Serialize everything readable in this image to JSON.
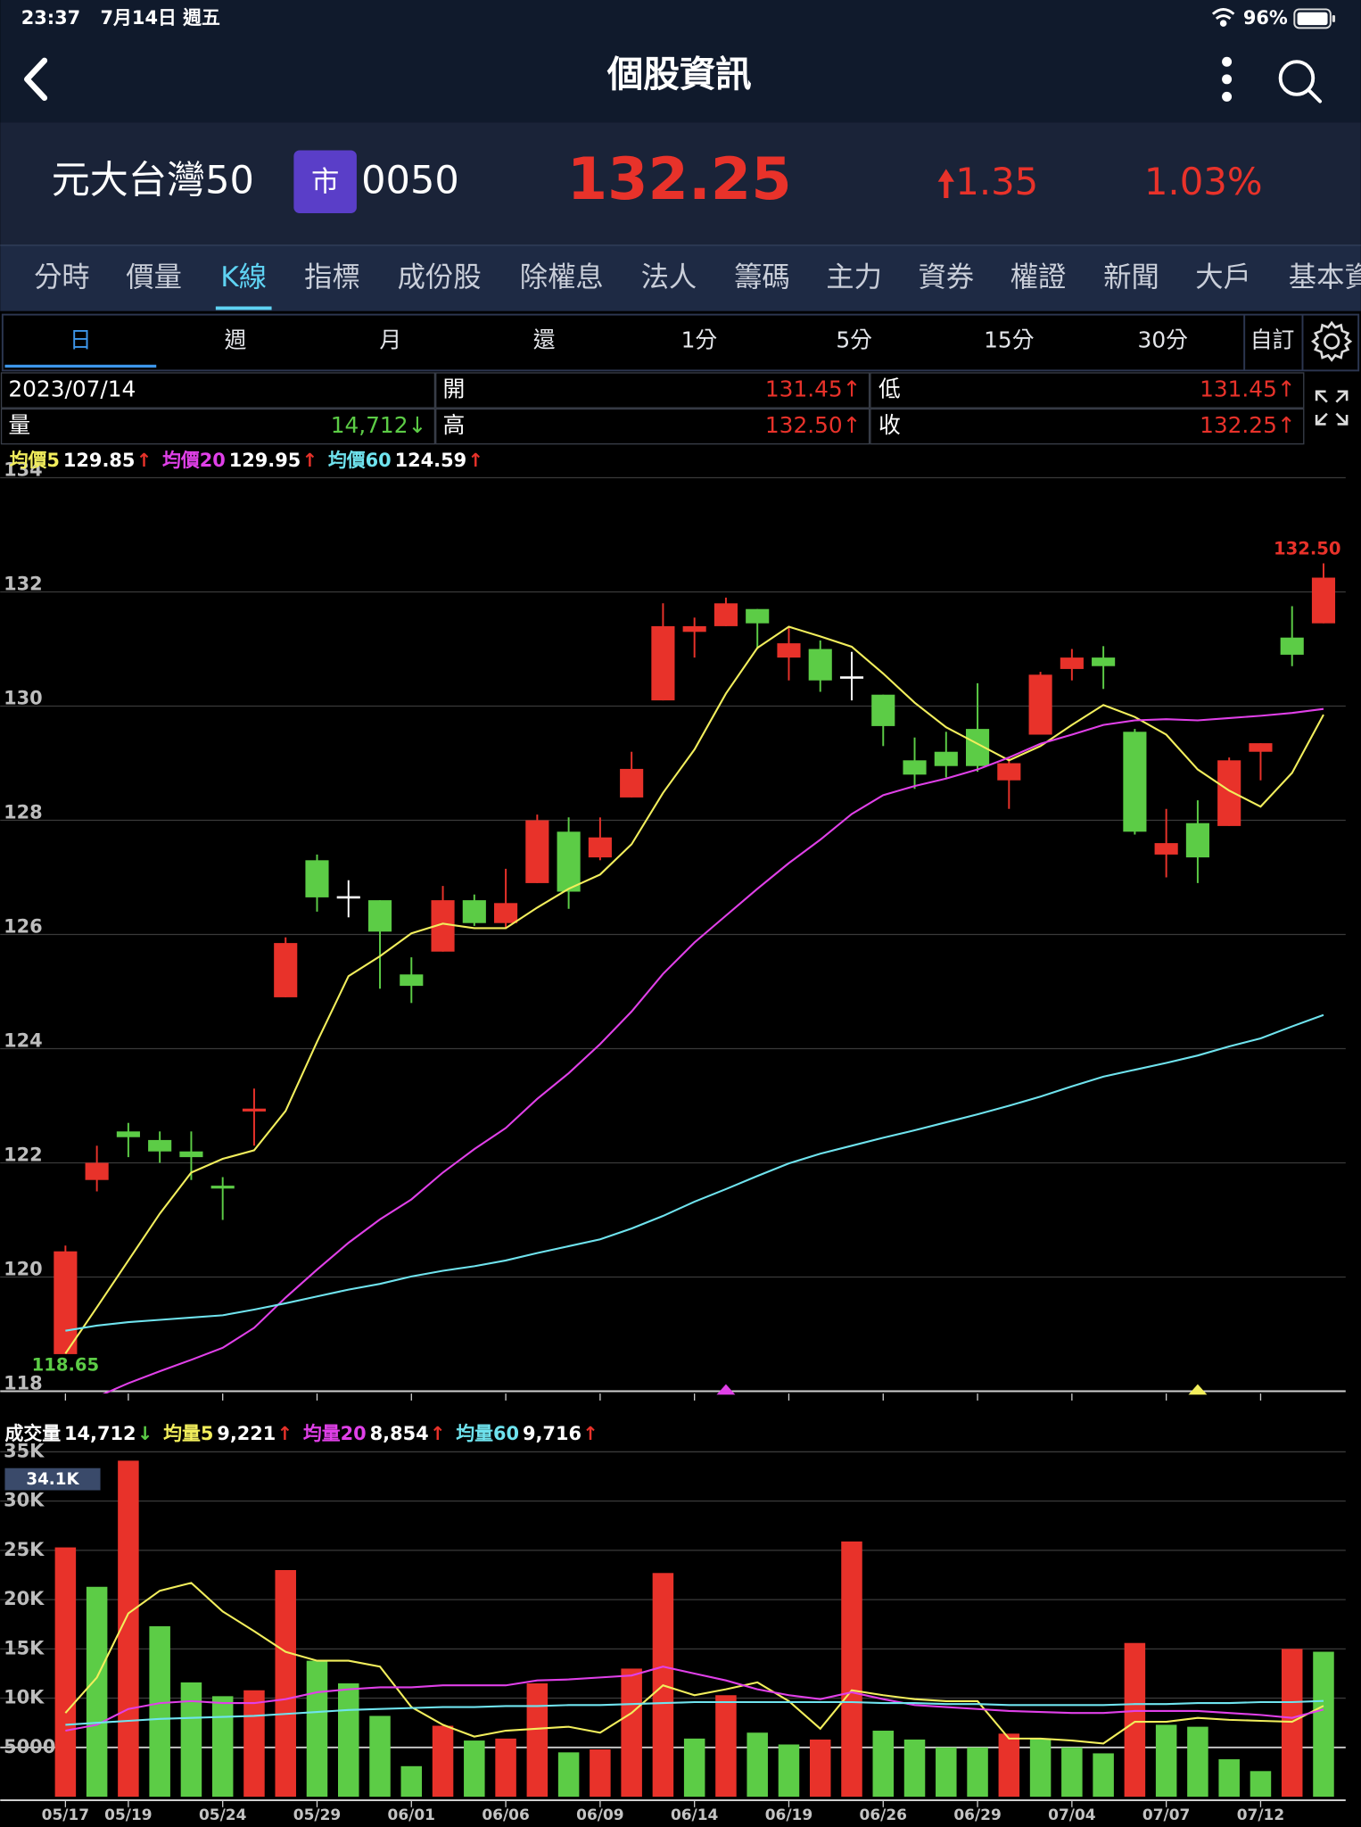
{
  "status_bar": {
    "time": "23:37",
    "date": "7月14日 週五",
    "battery": "96%"
  },
  "header": {
    "title": "個股資訊"
  },
  "quote": {
    "name": "元大台灣50",
    "market": "市",
    "code": "0050",
    "price": "132.25",
    "change": "1.35",
    "change_pct": "1.03%"
  },
  "tabs": [
    "分時",
    "價量",
    "K線",
    "指標",
    "成份股",
    "除權息",
    "法人",
    "籌碼",
    "主力",
    "資券",
    "權證",
    "新聞",
    "大戶",
    "基本資"
  ],
  "active_tab": 2,
  "periods": [
    "日",
    "週",
    "月",
    "還",
    "1分",
    "5分",
    "15分",
    "30分",
    "自訂"
  ],
  "active_period": 0,
  "info": {
    "date": "2023/07/14",
    "open": {
      "label": "開",
      "value": "131.45↑"
    },
    "low": {
      "label": "低",
      "value": "131.45↑"
    },
    "volume": {
      "label": "量",
      "value": "14,712↓"
    },
    "high": {
      "label": "高",
      "value": "132.50↑"
    },
    "close": {
      "label": "收",
      "value": "132.25↑"
    }
  },
  "chart_data": [
    {
      "type": "candlestick",
      "open": [
        118.65,
        121.7,
        122.55,
        122.4,
        122.2,
        121.6,
        122.9,
        124.9,
        127.3,
        126.65,
        126.6,
        125.3,
        125.7,
        126.6,
        126.2,
        126.9,
        127.8,
        127.35,
        128.4,
        130.1,
        131.3,
        131.4,
        131.7,
        130.85,
        131.0,
        130.5,
        130.2,
        129.05,
        129.2,
        129.6,
        128.7,
        129.5,
        130.65,
        130.85,
        129.55,
        127.4,
        127.95,
        127.9,
        129.2,
        131.2,
        131.45
      ],
      "high": [
        120.55,
        122.3,
        122.7,
        122.55,
        122.55,
        121.75,
        123.3,
        125.95,
        127.4,
        126.95,
        126.6,
        125.6,
        126.85,
        126.7,
        127.15,
        128.1,
        128.05,
        128.05,
        129.2,
        131.8,
        131.55,
        131.9,
        131.7,
        131.4,
        131.15,
        130.95,
        130.2,
        129.45,
        129.55,
        130.4,
        129.1,
        130.6,
        131.0,
        131.05,
        129.6,
        128.2,
        128.35,
        129.1,
        129.35,
        131.75,
        132.5
      ],
      "low": [
        118.65,
        121.5,
        122.1,
        122.0,
        121.7,
        121.0,
        122.3,
        124.9,
        126.4,
        126.3,
        125.05,
        124.8,
        125.7,
        126.15,
        126.1,
        126.9,
        126.45,
        127.3,
        128.4,
        130.1,
        130.85,
        131.4,
        131.0,
        130.45,
        130.25,
        130.1,
        129.3,
        128.55,
        128.75,
        128.85,
        128.2,
        129.5,
        130.45,
        130.3,
        127.75,
        127.0,
        126.9,
        127.9,
        128.7,
        130.7,
        131.45
      ],
      "close": [
        120.45,
        122.0,
        122.45,
        122.2,
        122.1,
        121.55,
        122.95,
        125.85,
        126.65,
        126.65,
        126.05,
        125.1,
        126.6,
        126.2,
        126.55,
        128.0,
        126.75,
        127.7,
        128.9,
        131.4,
        131.4,
        131.8,
        131.45,
        131.1,
        130.45,
        130.5,
        129.65,
        128.8,
        128.95,
        128.95,
        129.0,
        130.55,
        130.85,
        130.7,
        127.8,
        127.6,
        127.35,
        129.05,
        129.35,
        130.9,
        132.25
      ],
      "up_color": "#e8322a",
      "down_color": "#5ccc46",
      "flat_color": "#ffffff",
      "high_label": "132.50",
      "low_label": "118.65",
      "lines": [
        {
          "name": "均價5",
          "color": "#f2ee5c",
          "current": "129.85",
          "arrow": "↑",
          "arrow_color": "#e8322a",
          "values": [
            118.66,
            119.47,
            120.29,
            121.11,
            121.83,
            122.07,
            122.22,
            122.91,
            124.12,
            125.27,
            125.62,
            126.02,
            126.19,
            126.11,
            126.11,
            126.47,
            126.8,
            127.05,
            127.58,
            128.48,
            129.24,
            130.22,
            131.02,
            131.39,
            131.22,
            131.04,
            130.57,
            130.06,
            129.63,
            129.34,
            129.05,
            129.3,
            129.67,
            130.02,
            129.81,
            129.5,
            128.89,
            128.52,
            128.24,
            128.83,
            129.85
          ]
        },
        {
          "name": "均價20",
          "color": "#e040e8",
          "current": "129.95",
          "arrow": "↑",
          "arrow_color": "#e8322a",
          "values": [
            null,
            117.9,
            118.14,
            118.35,
            118.55,
            118.76,
            119.11,
            119.64,
            120.13,
            120.6,
            121.01,
            121.36,
            121.83,
            122.24,
            122.61,
            123.12,
            123.57,
            124.08,
            124.65,
            125.31,
            125.86,
            126.33,
            126.8,
            127.25,
            127.66,
            128.11,
            128.44,
            128.6,
            128.73,
            128.89,
            129.1,
            129.34,
            129.5,
            129.67,
            129.75,
            129.77,
            129.75,
            129.79,
            129.83,
            129.88,
            129.95
          ]
        },
        {
          "name": "均價60",
          "color": "#6fe3ee",
          "current": "124.59",
          "arrow": "↑",
          "arrow_color": "#e8322a",
          "values": [
            119.06,
            119.15,
            119.21,
            119.25,
            119.29,
            119.33,
            119.43,
            119.54,
            119.66,
            119.78,
            119.88,
            120.01,
            120.11,
            120.19,
            120.29,
            120.42,
            120.54,
            120.66,
            120.85,
            121.07,
            121.32,
            121.54,
            121.77,
            121.99,
            122.16,
            122.3,
            122.44,
            122.57,
            122.71,
            122.85,
            123.0,
            123.16,
            123.34,
            123.51,
            123.63,
            123.75,
            123.88,
            124.04,
            124.18,
            124.39,
            124.59
          ]
        }
      ],
      "ylim": [
        118,
        134
      ],
      "yticks": [
        118,
        120,
        122,
        124,
        126,
        128,
        130,
        132,
        134
      ],
      "grid": true
    },
    {
      "type": "bar",
      "name": "成交量",
      "current": "14,712",
      "arrow": "↓",
      "arrow_color": "#5ccc46",
      "categories": [
        "05/17",
        null,
        "05/19",
        null,
        null,
        "05/24",
        null,
        null,
        "05/29",
        null,
        null,
        "06/01",
        null,
        null,
        "06/06",
        null,
        null,
        "06/09",
        null,
        null,
        "06/14",
        null,
        null,
        "06/19",
        null,
        null,
        "06/26",
        null,
        null,
        "06/29",
        null,
        null,
        "07/04",
        null,
        null,
        "07/07",
        null,
        null,
        "07/12",
        null,
        null
      ],
      "values": [
        25300,
        21300,
        34100,
        17300,
        11600,
        10200,
        10800,
        23000,
        13800,
        11500,
        8200,
        3100,
        7200,
        5700,
        5900,
        11500,
        4500,
        4800,
        13000,
        22700,
        5900,
        10300,
        6500,
        5300,
        5800,
        25900,
        6700,
        5800,
        5000,
        5000,
        6400,
        5900,
        5000,
        4400,
        15600,
        7300,
        7100,
        3800,
        2600,
        15000,
        14712
      ],
      "colors": [
        "#e8322a",
        "#5ccc46",
        "#e8322a",
        "#5ccc46",
        "#5ccc46",
        "#5ccc46",
        "#e8322a",
        "#e8322a",
        "#5ccc46",
        "#5ccc46",
        "#5ccc46",
        "#5ccc46",
        "#e8322a",
        "#5ccc46",
        "#e8322a",
        "#e8322a",
        "#5ccc46",
        "#e8322a",
        "#e8322a",
        "#e8322a",
        "#5ccc46",
        "#e8322a",
        "#5ccc46",
        "#5ccc46",
        "#e8322a",
        "#e8322a",
        "#5ccc46",
        "#5ccc46",
        "#5ccc46",
        "#5ccc46",
        "#e8322a",
        "#5ccc46",
        "#5ccc46",
        "#5ccc46",
        "#e8322a",
        "#5ccc46",
        "#5ccc46",
        "#5ccc46",
        "#5ccc46",
        "#e8322a",
        "#5ccc46"
      ],
      "max_label": "34.1K",
      "lines": [
        {
          "name": "均量5",
          "color": "#f2ee5c",
          "current": "9,221",
          "arrow": "↑",
          "arrow_color": "#e8322a",
          "values": [
            8500,
            12100,
            18600,
            20900,
            21700,
            18800,
            16800,
            14700,
            13800,
            13800,
            13200,
            9100,
            7300,
            6100,
            6700,
            6900,
            7100,
            6500,
            8500,
            11300,
            10300,
            10900,
            11600,
            9700,
            6900,
            10800,
            10300,
            9900,
            9700,
            9700,
            5900,
            5900,
            5700,
            5400,
            7600,
            7600,
            8000,
            7800,
            7700,
            7600,
            9221
          ]
        },
        {
          "name": "均量20",
          "color": "#e040e8",
          "current": "8,854",
          "arrow": "↑",
          "arrow_color": "#e8322a",
          "values": [
            6700,
            7300,
            8900,
            9500,
            9700,
            9500,
            9500,
            9900,
            10600,
            10900,
            11100,
            11100,
            11300,
            11300,
            11300,
            11800,
            11900,
            12100,
            12300,
            13200,
            12500,
            11800,
            10900,
            10300,
            9900,
            10600,
            9900,
            9300,
            9100,
            8900,
            8700,
            8600,
            8500,
            8500,
            8700,
            8700,
            8700,
            8500,
            8300,
            8000,
            8854
          ]
        },
        {
          "name": "均量60",
          "color": "#6fe3ee",
          "current": "9,716",
          "arrow": "↑",
          "arrow_color": "#e8322a",
          "values": [
            7300,
            7500,
            7700,
            7900,
            8000,
            8100,
            8200,
            8400,
            8600,
            8800,
            8900,
            9000,
            9100,
            9100,
            9200,
            9200,
            9300,
            9300,
            9400,
            9500,
            9600,
            9600,
            9600,
            9600,
            9600,
            9600,
            9500,
            9500,
            9400,
            9400,
            9300,
            9300,
            9300,
            9300,
            9400,
            9400,
            9500,
            9500,
            9600,
            9600,
            9716
          ]
        }
      ],
      "ylim": [
        0,
        35000
      ],
      "yticks": [
        5000,
        {
          "value": 10000,
          "label": "10K"
        },
        {
          "value": 15000,
          "label": "15K"
        },
        {
          "value": 20000,
          "label": "20K"
        },
        {
          "value": 25000,
          "label": "25K"
        },
        {
          "value": 30000,
          "label": "30K"
        },
        {
          "value": 35000,
          "label": "35K"
        }
      ],
      "grid": true
    }
  ]
}
